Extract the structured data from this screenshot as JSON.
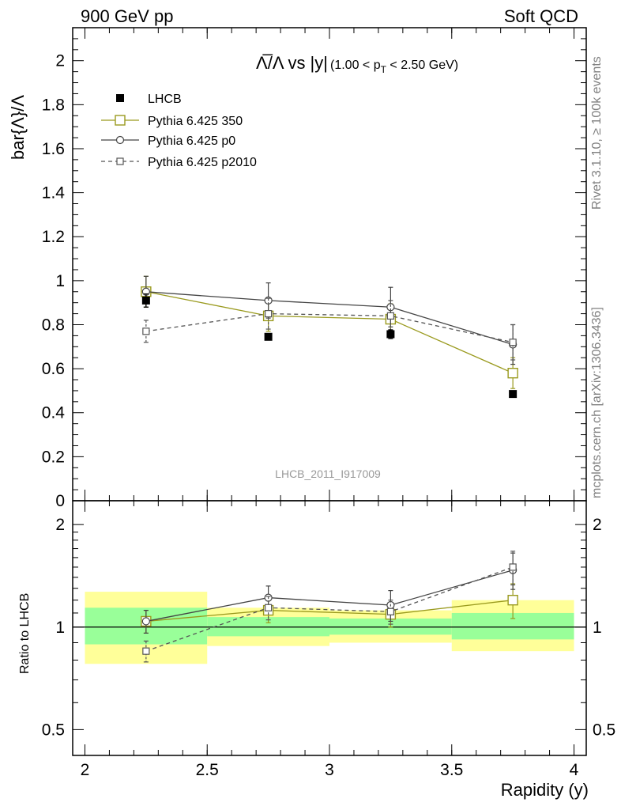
{
  "header": {
    "left": "900 GeV pp",
    "right": "Soft QCD"
  },
  "side_labels": {
    "rivet": "Rivet 3.1.10, ≥ 100k events",
    "mcplots": "mcplots.cern.ch [arXiv:1306.3436]"
  },
  "chart_data": [
    {
      "type": "scatter",
      "title_main": "Λ̅/Λ vs |y|",
      "title_sub": "(1.00 < p",
      "title_sub_index": "T",
      "title_sub_end": " < 2.50 GeV)",
      "ylabel": "bar{Λ}/Λ",
      "watermark": "LHCB_2011_I917009",
      "xlim": [
        1.95,
        4.05
      ],
      "ylim": [
        0,
        2.15
      ],
      "yticks": [
        "0",
        "0.2",
        "0.4",
        "0.6",
        "0.8",
        "1",
        "1.2",
        "1.4",
        "1.6",
        "1.8",
        "2"
      ],
      "yticks_values": [
        0,
        0.2,
        0.4,
        0.6,
        0.8,
        1.0,
        1.2,
        1.4,
        1.6,
        1.8,
        2.0
      ],
      "legend_position": "top-left",
      "series": [
        {
          "name": "LHCB",
          "style": "filled-square",
          "color": "#000000",
          "x": [
            2.25,
            2.75,
            3.25,
            3.75
          ],
          "y": [
            0.91,
            0.745,
            0.757,
            0.485
          ],
          "err": [
            0.03,
            0.01,
            0.02,
            0.01
          ]
        },
        {
          "name": "Pythia 6.425 350",
          "style": "open-square-line",
          "color": "#9a9a1e",
          "x": [
            2.25,
            2.75,
            3.25,
            3.75
          ],
          "y": [
            0.95,
            0.84,
            0.825,
            0.58
          ],
          "err": [
            0.07,
            0.07,
            0.07,
            0.07
          ]
        },
        {
          "name": "Pythia 6.425 p0",
          "style": "open-circle-line",
          "color": "#444444",
          "x": [
            2.25,
            2.75,
            3.25,
            3.75
          ],
          "y": [
            0.95,
            0.91,
            0.88,
            0.71
          ],
          "err": [
            0.07,
            0.08,
            0.09,
            0.09
          ]
        },
        {
          "name": "Pythia 6.425 p2010",
          "style": "open-square-dashed",
          "color": "#555555",
          "x": [
            2.25,
            2.75,
            3.25,
            3.75
          ],
          "y": [
            0.77,
            0.85,
            0.84,
            0.72
          ],
          "err": [
            0.05,
            0.07,
            0.07,
            0.08
          ]
        }
      ]
    },
    {
      "type": "scatter",
      "ylabel": "Ratio to LHCB",
      "xlabel": "Rapidity (y)",
      "xlim": [
        1.95,
        4.05
      ],
      "ylim": [
        0.42,
        2.35
      ],
      "log_y": true,
      "xticks": [
        "2",
        "2.5",
        "3",
        "3.5",
        "4"
      ],
      "xticks_values": [
        2.0,
        2.5,
        3.0,
        3.5,
        4.0
      ],
      "yticks": [
        "0.5",
        "1",
        "2"
      ],
      "yticks_values": [
        0.5,
        1.0,
        2.0
      ],
      "bands": {
        "x_edges": [
          [
            2.0,
            2.5
          ],
          [
            2.5,
            3.0
          ],
          [
            3.0,
            3.5
          ],
          [
            3.5,
            4.0
          ]
        ],
        "outer": [
          [
            0.78,
            1.27
          ],
          [
            0.88,
            1.14
          ],
          [
            0.9,
            1.12
          ],
          [
            0.85,
            1.2
          ]
        ],
        "inner": [
          [
            0.89,
            1.14
          ],
          [
            0.94,
            1.07
          ],
          [
            0.95,
            1.06
          ],
          [
            0.92,
            1.1
          ]
        ],
        "outer_color": "#ffff99",
        "inner_color": "#99ff99"
      },
      "series": [
        {
          "name": "Pythia 6.425 350",
          "color": "#9a9a1e",
          "style": "open-square-line",
          "x": [
            2.25,
            2.75,
            3.25,
            3.75
          ],
          "y": [
            1.04,
            1.12,
            1.09,
            1.2
          ],
          "err": [
            0.08,
            0.09,
            0.09,
            0.14
          ]
        },
        {
          "name": "Pythia 6.425 p0",
          "color": "#444444",
          "style": "open-circle-line",
          "x": [
            2.25,
            2.75,
            3.25,
            3.75
          ],
          "y": [
            1.04,
            1.22,
            1.16,
            1.47
          ],
          "err": [
            0.08,
            0.1,
            0.12,
            0.18
          ]
        },
        {
          "name": "Pythia 6.425 p2010",
          "color": "#555555",
          "style": "open-square-dashed",
          "x": [
            2.25,
            2.75,
            3.25,
            3.75
          ],
          "y": [
            0.85,
            1.14,
            1.11,
            1.5
          ],
          "err": [
            0.06,
            0.09,
            0.09,
            0.17
          ]
        }
      ]
    }
  ]
}
